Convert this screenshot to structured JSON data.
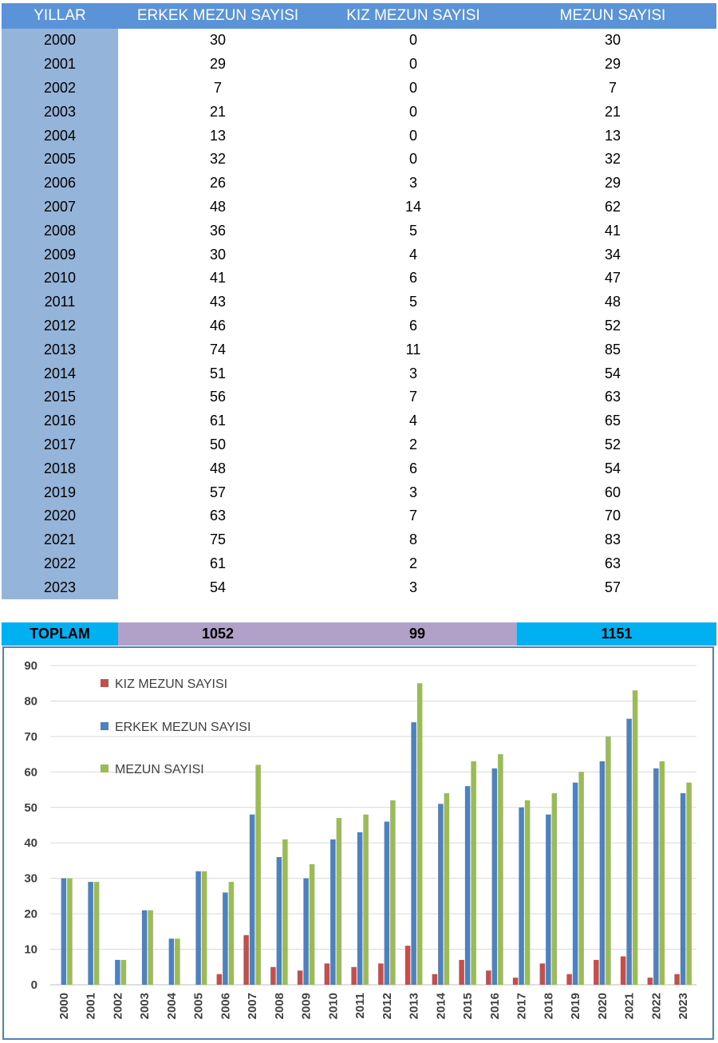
{
  "table": {
    "headers": [
      "YILLAR",
      "ERKEK MEZUN SAYISI",
      "KIZ MEZUN SAYISI",
      "MEZUN SAYISI"
    ],
    "rows": [
      [
        "2000",
        "30",
        "0",
        "30"
      ],
      [
        "2001",
        "29",
        "0",
        "29"
      ],
      [
        "2002",
        "7",
        "0",
        "7"
      ],
      [
        "2003",
        "21",
        "0",
        "21"
      ],
      [
        "2004",
        "13",
        "0",
        "13"
      ],
      [
        "2005",
        "32",
        "0",
        "32"
      ],
      [
        "2006",
        "26",
        "3",
        "29"
      ],
      [
        "2007",
        "48",
        "14",
        "62"
      ],
      [
        "2008",
        "36",
        "5",
        "41"
      ],
      [
        "2009",
        "30",
        "4",
        "34"
      ],
      [
        "2010",
        "41",
        "6",
        "47"
      ],
      [
        "2011",
        "43",
        "5",
        "48"
      ],
      [
        "2012",
        "46",
        "6",
        "52"
      ],
      [
        "2013",
        "74",
        "11",
        "85"
      ],
      [
        "2014",
        "51",
        "3",
        "54"
      ],
      [
        "2015",
        "56",
        "7",
        "63"
      ],
      [
        "2016",
        "61",
        "4",
        "65"
      ],
      [
        "2017",
        "50",
        "2",
        "52"
      ],
      [
        "2018",
        "48",
        "6",
        "54"
      ],
      [
        "2019",
        "57",
        "3",
        "60"
      ],
      [
        "2020",
        "63",
        "7",
        "70"
      ],
      [
        "2021",
        "75",
        "8",
        "83"
      ],
      [
        "2022",
        "61",
        "2",
        "63"
      ],
      [
        "2023",
        "54",
        "3",
        "57"
      ]
    ]
  },
  "totals": {
    "label": "TOPLAM",
    "erkek": "1052",
    "kiz": "99",
    "mezun": "1151"
  },
  "chart_data": {
    "type": "bar",
    "categories": [
      "2000",
      "2001",
      "2002",
      "2003",
      "2004",
      "2005",
      "2006",
      "2007",
      "2008",
      "2009",
      "2010",
      "2011",
      "2012",
      "2013",
      "2014",
      "2015",
      "2016",
      "2017",
      "2018",
      "2019",
      "2020",
      "2021",
      "2022",
      "2023"
    ],
    "series": [
      {
        "name": "KIZ MEZUN SAYISI",
        "color": "#c0504d",
        "values": [
          0,
          0,
          0,
          0,
          0,
          0,
          3,
          14,
          5,
          4,
          6,
          5,
          6,
          11,
          3,
          7,
          4,
          2,
          6,
          3,
          7,
          8,
          2,
          3
        ]
      },
      {
        "name": "ERKEK MEZUN SAYISI",
        "color": "#4f81bd",
        "values": [
          30,
          29,
          7,
          21,
          13,
          32,
          26,
          48,
          36,
          30,
          41,
          43,
          46,
          74,
          51,
          56,
          61,
          50,
          48,
          57,
          63,
          75,
          61,
          54
        ]
      },
      {
        "name": "MEZUN SAYISI",
        "color": "#9bbb59",
        "values": [
          30,
          29,
          7,
          21,
          13,
          32,
          29,
          62,
          41,
          34,
          47,
          48,
          52,
          85,
          54,
          63,
          65,
          52,
          54,
          60,
          70,
          83,
          63,
          57
        ]
      }
    ],
    "ylim": [
      0,
      90
    ],
    "yticks": [
      0,
      10,
      20,
      30,
      40,
      50,
      60,
      70,
      80,
      90
    ],
    "grid": true,
    "legend": "top-left"
  }
}
